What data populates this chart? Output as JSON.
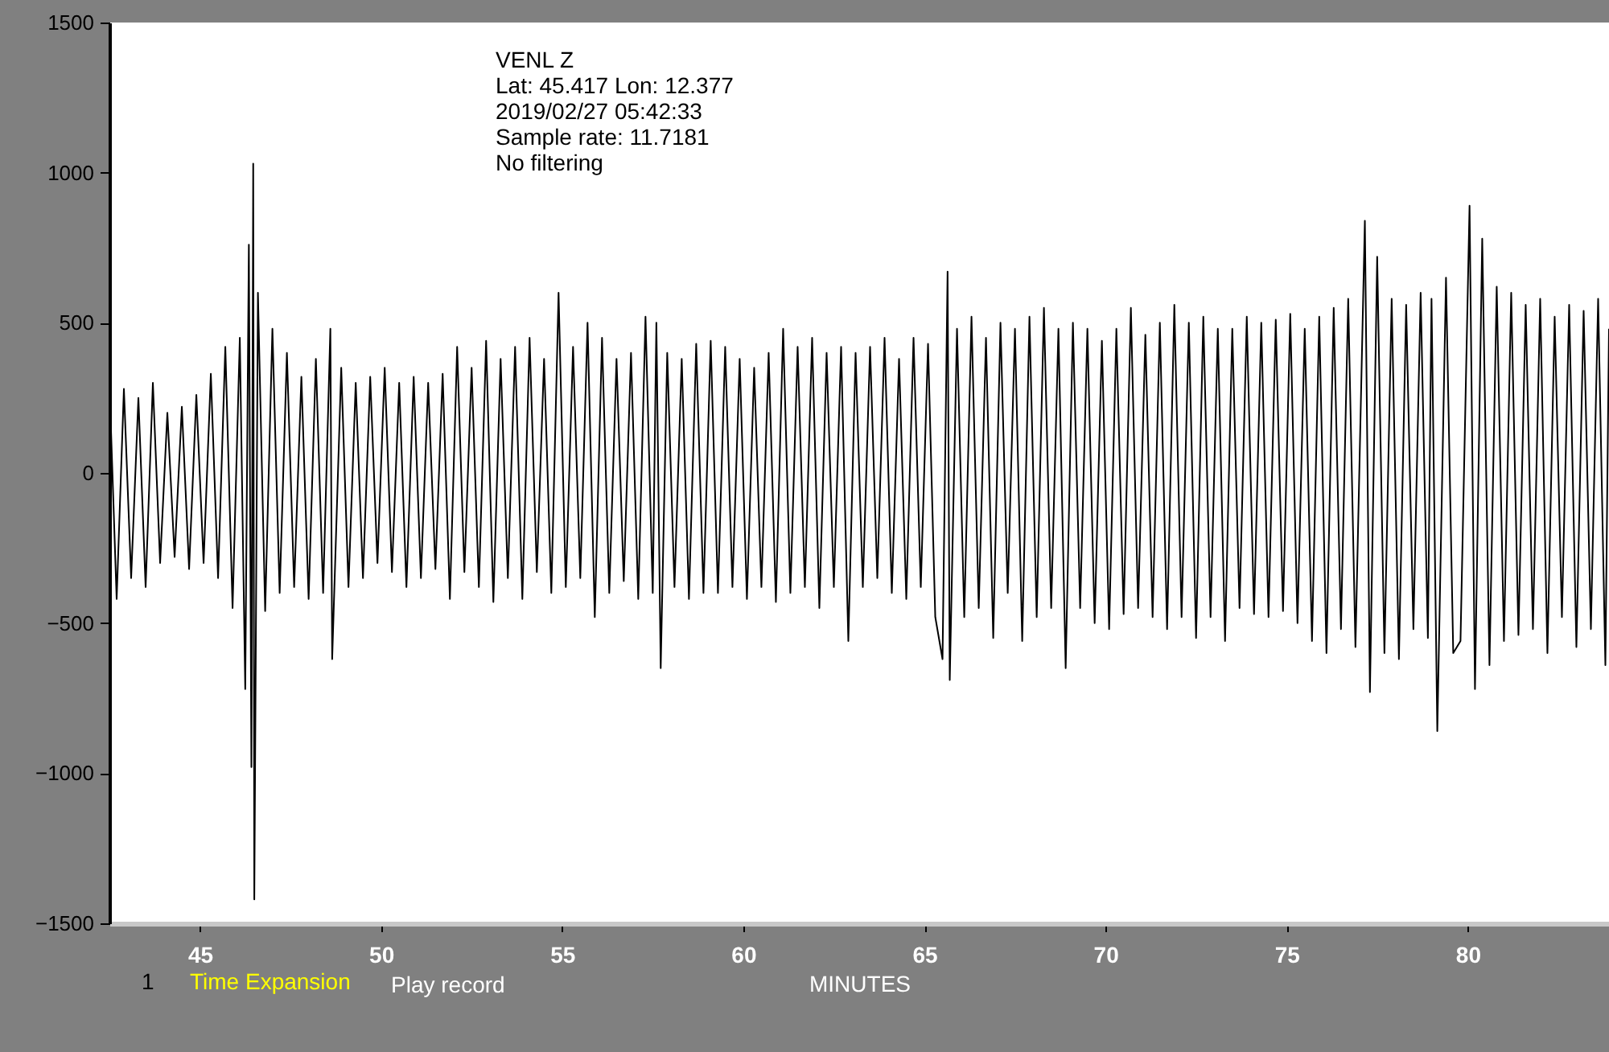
{
  "chart_data": {
    "type": "line",
    "xlabel": "MINUTES",
    "annotations": [
      "VENL  Z",
      "Lat: 45.417 Lon: 12.377",
      "2019/02/27 05:42:33",
      "Sample rate: 11.7181",
      "No filtering",
      "1",
      "Time Expansion",
      "Play record"
    ],
    "x": [
      42.5,
      42.7,
      42.9,
      43.1,
      43.3,
      43.5,
      43.7,
      43.9,
      44.1,
      44.3,
      44.5,
      44.7,
      44.9,
      45.1,
      45.3,
      45.5,
      45.7,
      45.9,
      46.1,
      46.25,
      46.35,
      46.42,
      46.47,
      46.5,
      46.6,
      46.8,
      47.0,
      47.2,
      47.4,
      47.6,
      47.8,
      48.0,
      48.2,
      48.4,
      48.6,
      48.65,
      48.9,
      49.1,
      49.3,
      49.5,
      49.7,
      49.9,
      50.1,
      50.3,
      50.5,
      50.7,
      50.9,
      51.1,
      51.3,
      51.5,
      51.7,
      51.9,
      52.1,
      52.3,
      52.5,
      52.7,
      52.9,
      53.1,
      53.3,
      53.5,
      53.7,
      53.9,
      54.1,
      54.3,
      54.5,
      54.7,
      54.9,
      55.1,
      55.3,
      55.5,
      55.7,
      55.9,
      56.1,
      56.3,
      56.5,
      56.7,
      56.9,
      57.1,
      57.3,
      57.5,
      57.6,
      57.72,
      57.9,
      58.1,
      58.3,
      58.5,
      58.7,
      58.9,
      59.1,
      59.3,
      59.5,
      59.7,
      59.9,
      60.1,
      60.3,
      60.5,
      60.7,
      60.9,
      61.1,
      61.3,
      61.5,
      61.7,
      61.9,
      62.1,
      62.3,
      62.5,
      62.7,
      62.9,
      63.1,
      63.3,
      63.5,
      63.7,
      63.9,
      64.1,
      64.3,
      64.5,
      64.7,
      64.9,
      65.1,
      65.3,
      65.5,
      65.64,
      65.7,
      65.9,
      66.1,
      66.3,
      66.5,
      66.7,
      66.9,
      67.1,
      67.3,
      67.5,
      67.7,
      67.9,
      68.1,
      68.3,
      68.5,
      68.7,
      68.9,
      69.1,
      69.3,
      69.5,
      69.7,
      69.9,
      70.1,
      70.3,
      70.5,
      70.7,
      70.9,
      71.1,
      71.3,
      71.5,
      71.7,
      71.9,
      72.1,
      72.3,
      72.5,
      72.7,
      72.9,
      73.1,
      73.3,
      73.5,
      73.7,
      73.9,
      74.1,
      74.3,
      74.5,
      74.7,
      74.9,
      75.1,
      75.3,
      75.5,
      75.7,
      75.9,
      76.1,
      76.3,
      76.5,
      76.7,
      76.9,
      77.16,
      77.3,
      77.5,
      77.7,
      77.9,
      78.1,
      78.3,
      78.5,
      78.7,
      78.9,
      79.0,
      79.16,
      79.4,
      79.6,
      79.8,
      80.05,
      80.2,
      80.4,
      80.6,
      80.8,
      81.0,
      81.2,
      81.4,
      81.6,
      81.8,
      82.0,
      82.2,
      82.4,
      82.6,
      82.8,
      83.0,
      83.2,
      83.4,
      83.6,
      83.8,
      83.9
    ],
    "series": [
      {
        "color": "#000000",
        "values": [
          300,
          -420,
          280,
          -350,
          250,
          -380,
          300,
          -300,
          200,
          -280,
          220,
          -320,
          260,
          -300,
          330,
          -350,
          420,
          -450,
          450,
          -720,
          760,
          -980,
          1030,
          -1420,
          600,
          -460,
          480,
          -400,
          400,
          -380,
          320,
          -420,
          380,
          -400,
          480,
          -620,
          350,
          -380,
          300,
          -350,
          320,
          -300,
          350,
          -330,
          300,
          -380,
          320,
          -350,
          300,
          -320,
          330,
          -420,
          420,
          -330,
          350,
          -380,
          440,
          -430,
          380,
          -350,
          420,
          -420,
          450,
          -330,
          380,
          -400,
          600,
          -380,
          420,
          -350,
          500,
          -480,
          450,
          -400,
          380,
          -360,
          400,
          -420,
          520,
          -400,
          500,
          -650,
          400,
          -380,
          380,
          -420,
          430,
          -400,
          440,
          -400,
          420,
          -380,
          380,
          -420,
          350,
          -380,
          400,
          -430,
          480,
          -400,
          420,
          -380,
          450,
          -450,
          400,
          -380,
          420,
          -560,
          400,
          -380,
          420,
          -350,
          450,
          -400,
          380,
          -420,
          450,
          -380,
          430,
          -480,
          -620,
          670,
          -690,
          480,
          -480,
          520,
          -450,
          450,
          -550,
          500,
          -400,
          480,
          -560,
          520,
          -480,
          550,
          -450,
          480,
          -650,
          500,
          -450,
          480,
          -500,
          440,
          -520,
          480,
          -470,
          550,
          -450,
          460,
          -480,
          500,
          -520,
          560,
          -480,
          500,
          -550,
          520,
          -480,
          480,
          -560,
          480,
          -450,
          520,
          -470,
          500,
          -480,
          510,
          -460,
          530,
          -500,
          480,
          -560,
          520,
          -600,
          550,
          -520,
          580,
          -580,
          840,
          -730,
          720,
          -600,
          580,
          -620,
          560,
          -520,
          600,
          -550,
          580,
          -860,
          650,
          -600,
          -560,
          890,
          -720,
          780,
          -640,
          620,
          -560,
          600,
          -540,
          560,
          -520,
          580,
          -600,
          520,
          -480,
          560,
          -580,
          540,
          -520,
          580,
          -640,
          480
        ]
      }
    ],
    "xlim": [
      42.5,
      83.9
    ],
    "xticks": [
      45,
      50,
      55,
      60,
      65,
      70,
      75,
      80
    ],
    "ylim": [
      -1500,
      1500
    ],
    "yticks": [
      -1500,
      -1000,
      -500,
      0,
      500,
      1000,
      1500
    ],
    "grid": false,
    "marker": "none",
    "line_style": "solid"
  }
}
